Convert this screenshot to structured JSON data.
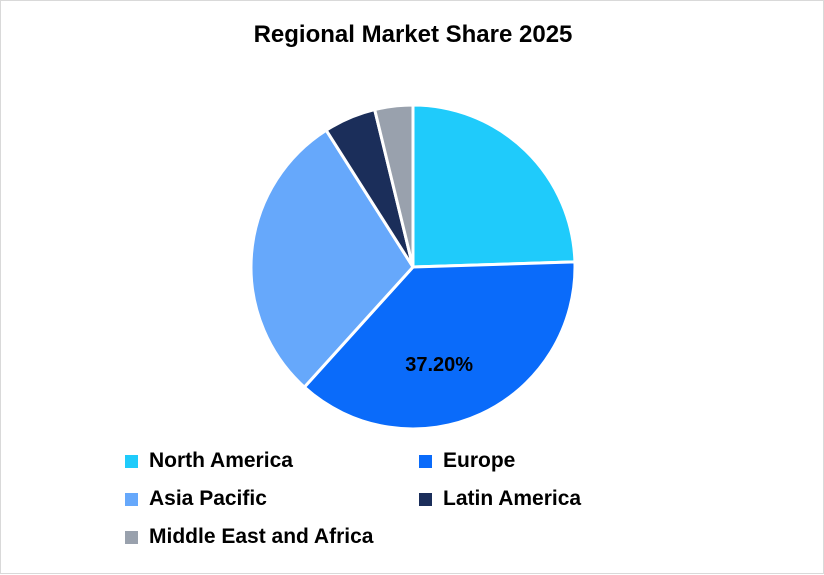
{
  "chart_data": {
    "type": "pie",
    "title": "Regional Market Share 2025",
    "categories": [
      "North America",
      "Europe",
      "Asia Pacific",
      "Latin America",
      "Middle East and Africa"
    ],
    "values": [
      24.5,
      37.2,
      29.3,
      5.2,
      3.8
    ],
    "colors": [
      "#1fcbfb",
      "#0a6bfa",
      "#66a8fb",
      "#1b2e5a",
      "#99a1ad"
    ],
    "data_labels": [
      {
        "category": "Europe",
        "text": "37.20%"
      }
    ],
    "start_angle_deg": 0,
    "direction": "clockwise",
    "legend_position": "bottom"
  }
}
